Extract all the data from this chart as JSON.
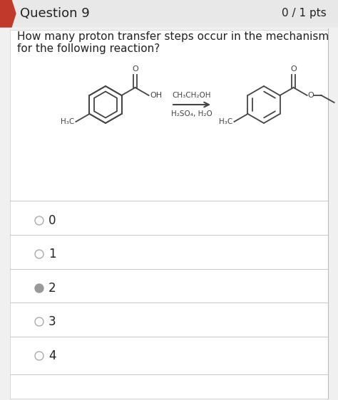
{
  "title": "Question 9",
  "pts": "0 / 1 pts",
  "question_text_line1": "How many proton transfer steps occur in the mechanism",
  "question_text_line2": "for the following reaction?",
  "reagents_line1": "CH₃CH₂OH",
  "reagents_line2": "H₂SO₄, H₂O",
  "choices": [
    "0",
    "1",
    "2",
    "3",
    "4"
  ],
  "selected": 2,
  "bg_color": "#f0f0f0",
  "header_bg": "#e8e8e8",
  "content_bg": "#ffffff",
  "arrow_color": "#c0392b",
  "text_color": "#222222",
  "divider_color": "#cccccc",
  "radio_fill_color": "#999999",
  "radio_edge_color": "#aaaaaa",
  "bond_color": "#444444",
  "bond_lw": 1.3
}
